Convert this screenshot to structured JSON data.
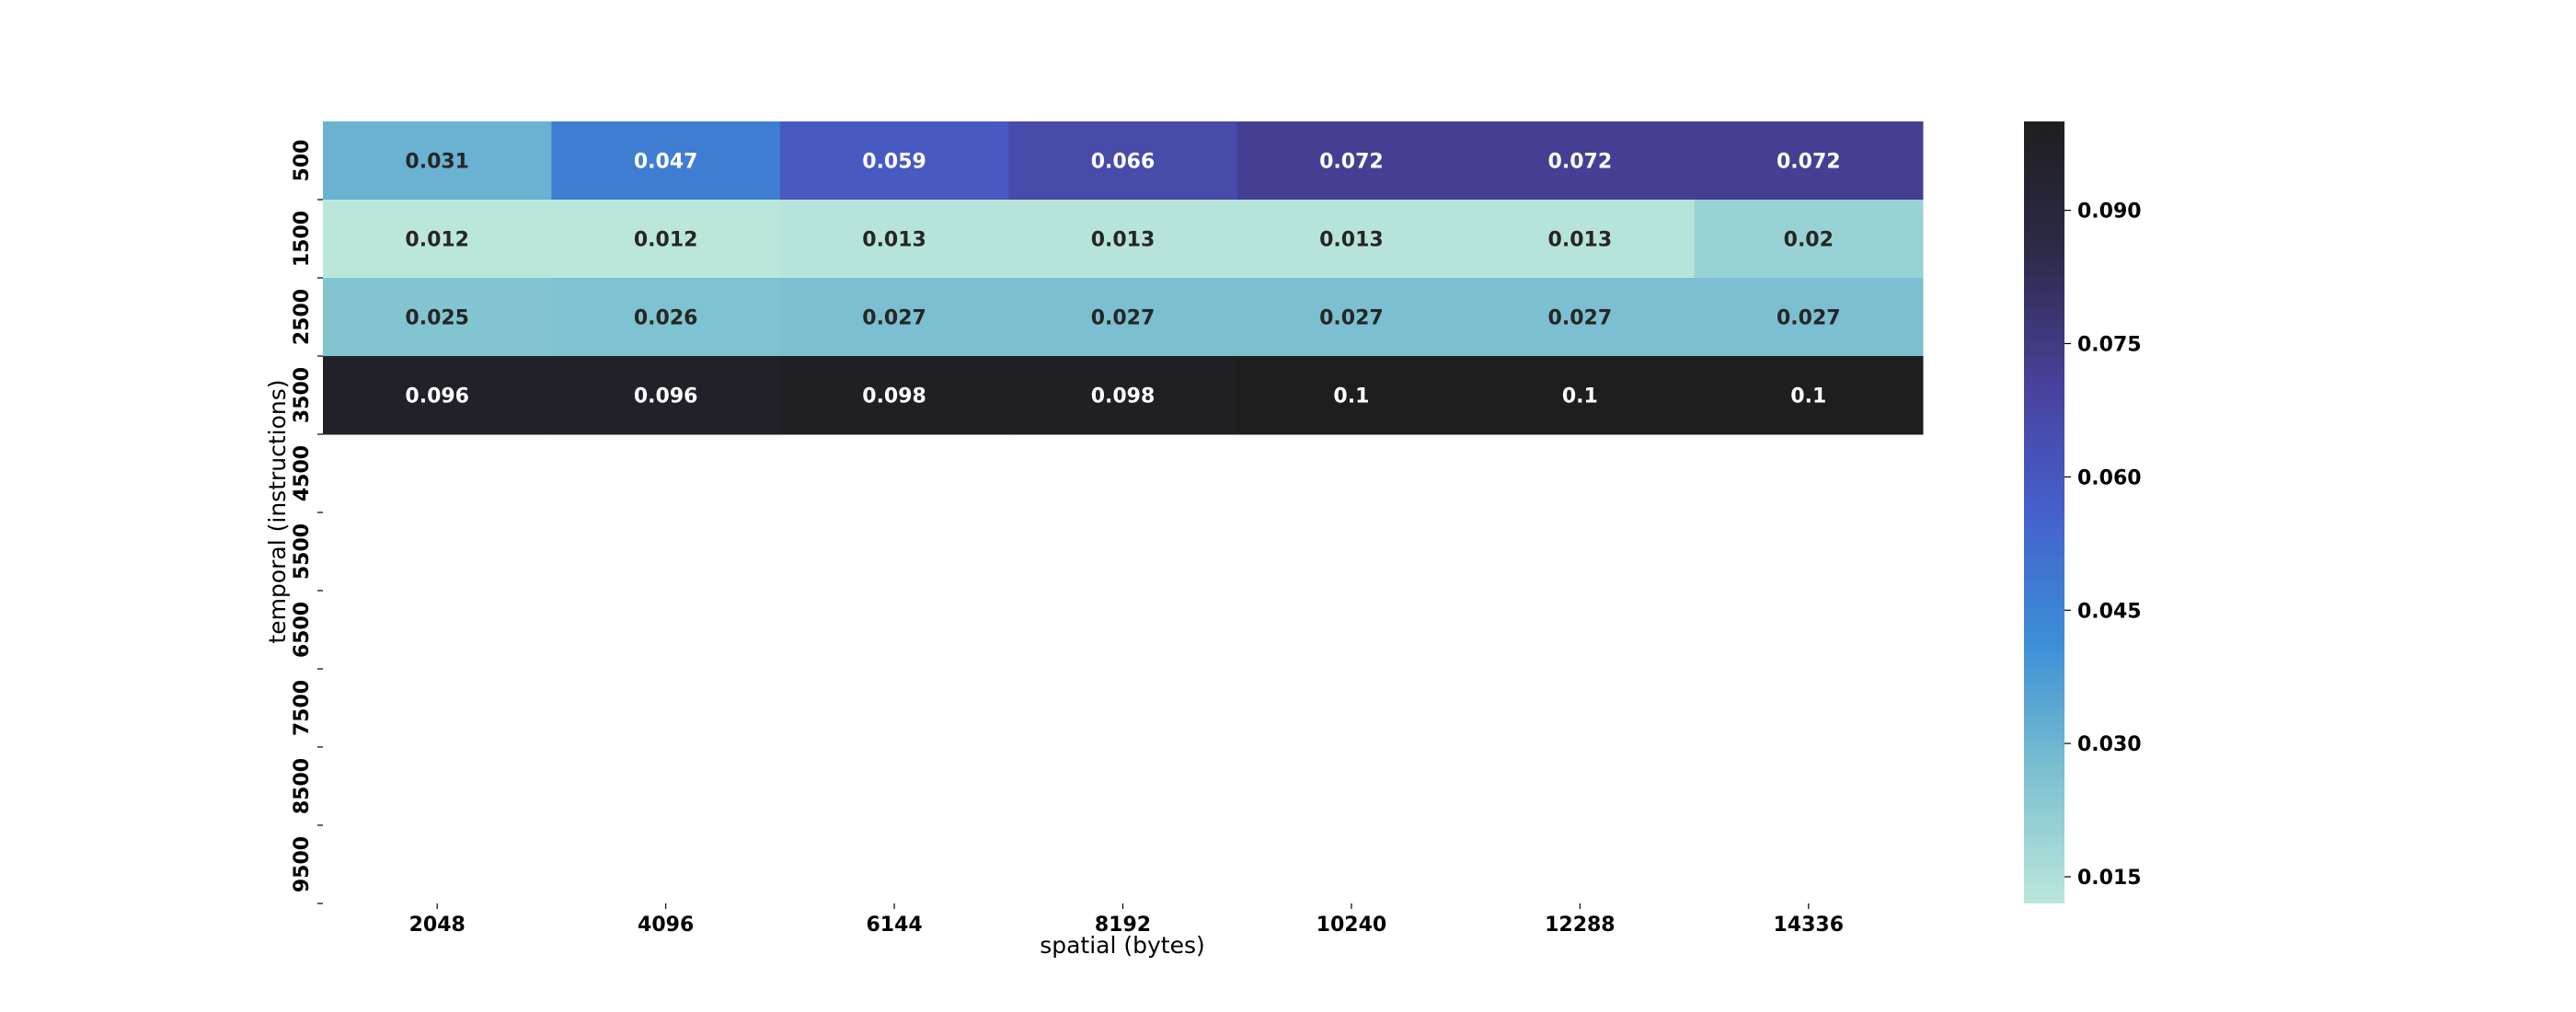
{
  "chart_data": {
    "type": "heatmap",
    "title": "",
    "xlabel": "spatial (bytes)",
    "ylabel": "temporal (instructions)",
    "x_categories": [
      "2048",
      "4096",
      "6144",
      "8192",
      "10240",
      "12288",
      "14336"
    ],
    "y_categories": [
      "500",
      "1500",
      "2500",
      "3500",
      "4500",
      "5500",
      "6500",
      "7500",
      "8500",
      "9500"
    ],
    "values": [
      [
        0.031,
        0.047,
        0.059,
        0.066,
        0.072,
        0.072,
        0.072
      ],
      [
        0.012,
        0.012,
        0.013,
        0.013,
        0.013,
        0.013,
        0.02
      ],
      [
        0.025,
        0.026,
        0.027,
        0.027,
        0.027,
        0.027,
        0.027
      ],
      [
        0.096,
        0.096,
        0.098,
        0.098,
        0.1,
        0.1,
        0.1
      ],
      [
        null,
        null,
        null,
        null,
        null,
        null,
        null
      ],
      [
        null,
        null,
        null,
        null,
        null,
        null,
        null
      ],
      [
        null,
        null,
        null,
        null,
        null,
        null,
        null
      ],
      [
        null,
        null,
        null,
        null,
        null,
        null,
        null
      ],
      [
        null,
        null,
        null,
        null,
        null,
        null,
        null
      ],
      [
        null,
        null,
        null,
        null,
        null,
        null,
        null
      ]
    ],
    "cell_labels": [
      [
        "0.031",
        "0.047",
        "0.059",
        "0.066",
        "0.072",
        "0.072",
        "0.072"
      ],
      [
        "0.012",
        "0.012",
        "0.013",
        "0.013",
        "0.013",
        "0.013",
        "0.02"
      ],
      [
        "0.025",
        "0.026",
        "0.027",
        "0.027",
        "0.027",
        "0.027",
        "0.027"
      ],
      [
        "0.096",
        "0.096",
        "0.098",
        "0.098",
        "0.1",
        "0.1",
        "0.1"
      ]
    ],
    "colorbar": {
      "min": 0.012,
      "max": 0.1,
      "ticks": [
        "0.015",
        "0.030",
        "0.045",
        "0.060",
        "0.075",
        "0.090"
      ],
      "colormap": "icefire-like: mint -> teal -> blue -> indigo -> near-black",
      "colors": [
        "#bbe7db",
        "#7cc0d0",
        "#3b8fd6",
        "#4560cc",
        "#48419a",
        "#2c2a48",
        "#1e1e1e"
      ]
    },
    "grid": false,
    "legend": "colorbar-right"
  }
}
